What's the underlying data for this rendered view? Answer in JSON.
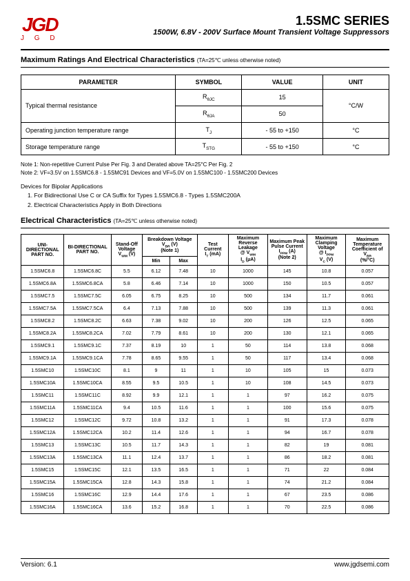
{
  "logo": {
    "mark": "JGD",
    "text": "J G D"
  },
  "series": "1.5SMC SERIES",
  "subtitle": "1500W, 6.8V - 200V Surface Mount Transient Voltage Suppressors",
  "sec1_title": "Maximum Ratings And Electrical Characteristics",
  "sec1_note": "(TA=25℃ unless otherwise noted)",
  "t1": {
    "headers": [
      "PARAMETER",
      "SYMBOL",
      "VALUE",
      "UNIT"
    ],
    "r1": {
      "param": "Typical thermal resistance",
      "sym1": "RθJC",
      "val1": "15",
      "sym2": "RθJA",
      "val2": "50",
      "unit": "°C/W"
    },
    "r2": {
      "param": "Operating junction temperature range",
      "sym": "TJ",
      "val": "- 55 to +150",
      "unit": "°C"
    },
    "r3": {
      "param": "Storage temperature range",
      "sym": "TSTG",
      "val": "- 55 to +150",
      "unit": "°C"
    }
  },
  "note1": "Note 1: Non-repetitive Current Pulse Per Fig. 3 and Derated above TA=25°C Per Fig. 2",
  "note2": "Note 2: VF=3.5V on 1.5SMC6.8 - 1.5SMC91 Devices and VF=5.0V on 1.5SMC100 - 1.5SMC200 Devices",
  "devhead": "Devices for Bipolar Applications",
  "dev1": "1. For Bidirectional Use C or CA Suffix for Types 1.5SMC6.8 - Types 1.5SMC200A",
  "dev2": "2. Electrical Characteristics Apply in Both Directions",
  "sec2_title": "Electrical Characteristics",
  "sec2_note": "(TA=25℃ unless otherwise noted)",
  "t2h": {
    "c1": "UNI-DIRECTIONAL PART NO.",
    "c2": "BI-DIRECTIONAL PART NO.",
    "c3a": "Stand-Off Voltage",
    "c3b": "VWM (V)",
    "c4a": "Breakdown Voltage",
    "c4b": "VBR (V)",
    "c4c": "(Note 1)",
    "c4min": "Min",
    "c4max": "Max",
    "c5a": "Test Current",
    "c5b": "IT (mA)",
    "c6a": "Maximum Reverse Leakage",
    "c6b": "@ VWM",
    "c6c": "ID (μA)",
    "c7a": "Maximum Peak Pulse Current",
    "c7b": "IPPM (A)",
    "c7c": "(Note 2)",
    "c8a": "Maximum Clamping Voltage",
    "c8b": "@ IPPM",
    "c8c": "Vc (V)",
    "c9a": "Maximum Temperature Coefficient",
    "c9b": "of VBR",
    "c9c": "(%/°C)"
  },
  "rows": [
    [
      "1.5SMC6.8",
      "1.5SMC6.8C",
      "5.5",
      "6.12",
      "7.48",
      "10",
      "1000",
      "145",
      "10.8",
      "0.057"
    ],
    [
      "1.5SMC6.8A",
      "1.5SMC6.8CA",
      "5.8",
      "6.46",
      "7.14",
      "10",
      "1000",
      "150",
      "10.5",
      "0.057"
    ],
    [
      "1.5SMC7.5",
      "1.5SMC7.5C",
      "6.05",
      "6.75",
      "8.25",
      "10",
      "500",
      "134",
      "11.7",
      "0.061"
    ],
    [
      "1.5SMC7.5A",
      "1.5SMC7.5CA",
      "6.4",
      "7.13",
      "7.88",
      "10",
      "500",
      "139",
      "11.3",
      "0.061"
    ],
    [
      "1.5SMC8.2",
      "1.5SMC8.2C",
      "6.63",
      "7.38",
      "9.02",
      "10",
      "200",
      "126",
      "12.5",
      "0.065"
    ],
    [
      "1.5SMC8.2A",
      "1.5SMC8.2CA",
      "7.02",
      "7.79",
      "8.61",
      "10",
      "200",
      "130",
      "12.1",
      "0.065"
    ],
    [
      "1.5SMC9.1",
      "1.5SMC9.1C",
      "7.37",
      "8.19",
      "10",
      "1",
      "50",
      "114",
      "13.8",
      "0.068"
    ],
    [
      "1.5SMC9.1A",
      "1.5SMC9.1CA",
      "7.78",
      "8.65",
      "9.55",
      "1",
      "50",
      "117",
      "13.4",
      "0.068"
    ],
    [
      "1.5SMC10",
      "1.5SMC10C",
      "8.1",
      "9",
      "11",
      "1",
      "10",
      "105",
      "15",
      "0.073"
    ],
    [
      "1.5SMC10A",
      "1.5SMC10CA",
      "8.55",
      "9.5",
      "10.5",
      "1",
      "10",
      "108",
      "14.5",
      "0.073"
    ],
    [
      "1.5SMC11",
      "1.5SMC11C",
      "8.92",
      "9.9",
      "12.1",
      "1",
      "1",
      "97",
      "16.2",
      "0.075"
    ],
    [
      "1.5SMC11A",
      "1.5SMC11CA",
      "9.4",
      "10.5",
      "11.6",
      "1",
      "1",
      "100",
      "15.6",
      "0.075"
    ],
    [
      "1.5SMC12",
      "1.5SMC12C",
      "9.72",
      "10.8",
      "13.2",
      "1",
      "1",
      "91",
      "17.3",
      "0.078"
    ],
    [
      "1.5SMC12A",
      "1.5SMC12CA",
      "10.2",
      "11.4",
      "12.6",
      "1",
      "1",
      "94",
      "16.7",
      "0.078"
    ],
    [
      "1.5SMC13",
      "1.5SMC13C",
      "10.5",
      "11.7",
      "14.3",
      "1",
      "1",
      "82",
      "19",
      "0.081"
    ],
    [
      "1.5SMC13A",
      "1.5SMC13CA",
      "11.1",
      "12.4",
      "13.7",
      "1",
      "1",
      "86",
      "18.2",
      "0.081"
    ],
    [
      "1.5SMC15",
      "1.5SMC15C",
      "12.1",
      "13.5",
      "16.5",
      "1",
      "1",
      "71",
      "22",
      "0.084"
    ],
    [
      "1.5SMC15A",
      "1.5SMC15CA",
      "12.8",
      "14.3",
      "15.8",
      "1",
      "1",
      "74",
      "21.2",
      "0.084"
    ],
    [
      "1.5SMC16",
      "1.5SMC16C",
      "12.9",
      "14.4",
      "17.6",
      "1",
      "1",
      "67",
      "23.5",
      "0.086"
    ],
    [
      "1.5SMC16A",
      "1.5SMC16CA",
      "13.6",
      "15.2",
      "16.8",
      "1",
      "1",
      "70",
      "22.5",
      "0.086"
    ]
  ],
  "footer": {
    "version": "Version: 6.1",
    "url": "www.jgdsemi.com"
  }
}
